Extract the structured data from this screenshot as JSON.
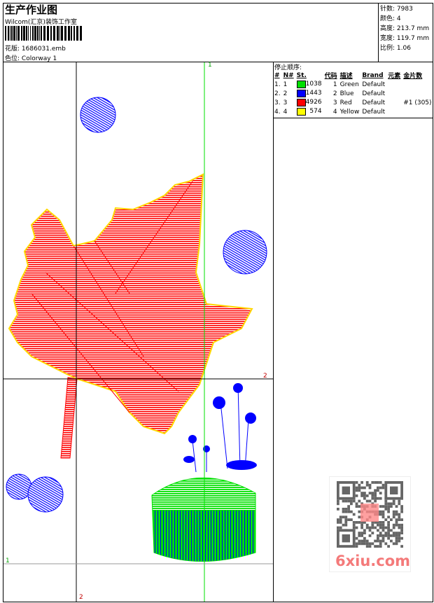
{
  "header": {
    "title": "生产作业图",
    "company": "Wilcom(汇京)装饰工作室",
    "design_label": "花版:",
    "design_value": "1686031.emb",
    "colorway_label": "色位:",
    "colorway_value": "Colorway 1"
  },
  "info": [
    {
      "label": "针数:",
      "value": "7983"
    },
    {
      "label": "颜色:",
      "value": "4"
    },
    {
      "label": "高度:",
      "value": "213.7 mm"
    },
    {
      "label": "宽度:",
      "value": "119.7 mm"
    },
    {
      "label": "比例:",
      "value": "1.06"
    }
  ],
  "stops": {
    "title": "停止顺序:",
    "columns": [
      "#",
      "N#",
      "St.",
      "代码",
      "描述",
      "Brand",
      "元素",
      "金片数"
    ],
    "rows": [
      {
        "idx": "1.",
        "n": "1",
        "color": "#00e000",
        "st": "1038",
        "code": "1",
        "desc": "Green",
        "brand": "Default",
        "elem": "",
        "seq": ""
      },
      {
        "idx": "2.",
        "n": "2",
        "color": "#0000ff",
        "st": "1443",
        "code": "2",
        "desc": "Blue",
        "brand": "Default",
        "elem": "",
        "seq": ""
      },
      {
        "idx": "3.",
        "n": "3",
        "color": "#ff0000",
        "st": "4926",
        "code": "3",
        "desc": "Red",
        "brand": "Default",
        "elem": "",
        "seq": "#1 (305)"
      },
      {
        "idx": "4.",
        "n": "4",
        "color": "#ffff00",
        "st": "574",
        "code": "4",
        "desc": "Yellow",
        "brand": "Default",
        "elem": "",
        "seq": ""
      }
    ]
  },
  "axes": {
    "v_green": "1",
    "h_black": "2",
    "h_gray": "1",
    "v_black": "2"
  },
  "watermark": "6xiu.com"
}
